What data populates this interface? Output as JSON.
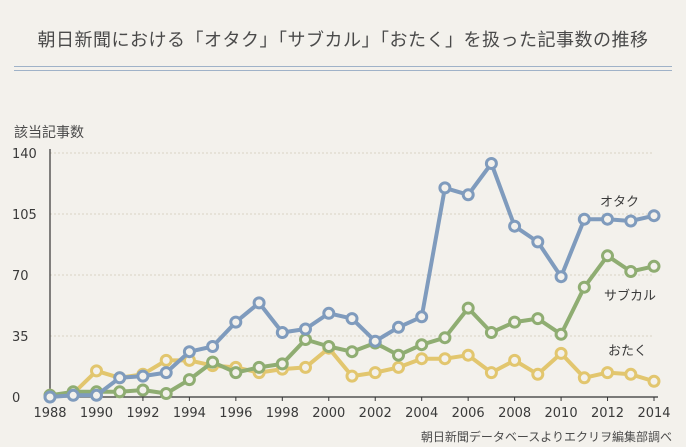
{
  "title": "朝日新聞における「オタク」「サブカル」「おたく」を扱った記事数の推移",
  "source": "朝日新聞データベースよりエクリヲ編集部調べ",
  "chart_data": {
    "type": "line",
    "title": "朝日新聞における「オタク」「サブカル」「おたく」を扱った記事数の推移",
    "xlabel": "",
    "ylabel": "該当記事数",
    "xlim": [
      1988,
      2014
    ],
    "ylim": [
      0,
      140
    ],
    "yticks": [
      0,
      35,
      70,
      105,
      140
    ],
    "xticks": [
      1988,
      1990,
      1992,
      1994,
      1996,
      1998,
      2000,
      2002,
      2004,
      2006,
      2008,
      2010,
      2012,
      2014
    ],
    "x": [
      1988,
      1989,
      1990,
      1991,
      1992,
      1993,
      1994,
      1995,
      1996,
      1997,
      1998,
      1999,
      2000,
      2001,
      2002,
      2003,
      2004,
      2005,
      2006,
      2007,
      2008,
      2009,
      2010,
      2011,
      2012,
      2013,
      2014
    ],
    "series": [
      {
        "name": "おたく",
        "color": "#e2c66e",
        "values": [
          1,
          2,
          15,
          11,
          13,
          21,
          21,
          18,
          17,
          14,
          16,
          17,
          28,
          12,
          14,
          17,
          22,
          22,
          24,
          14,
          21,
          13,
          25,
          11,
          14,
          13,
          9
        ]
      },
      {
        "name": "サブカル",
        "color": "#8fad72",
        "values": [
          1,
          3,
          3,
          3,
          4,
          2,
          10,
          20,
          14,
          17,
          19,
          33,
          29,
          26,
          31,
          24,
          30,
          34,
          51,
          37,
          43,
          45,
          36,
          63,
          81,
          72,
          75
        ]
      },
      {
        "name": "オタク",
        "color": "#7f9bbd",
        "values": [
          0,
          1,
          1,
          11,
          12,
          14,
          26,
          29,
          43,
          54,
          37,
          39,
          48,
          45,
          32,
          40,
          46,
          120,
          116,
          134,
          98,
          89,
          69,
          102,
          102,
          101,
          104
        ]
      }
    ]
  }
}
